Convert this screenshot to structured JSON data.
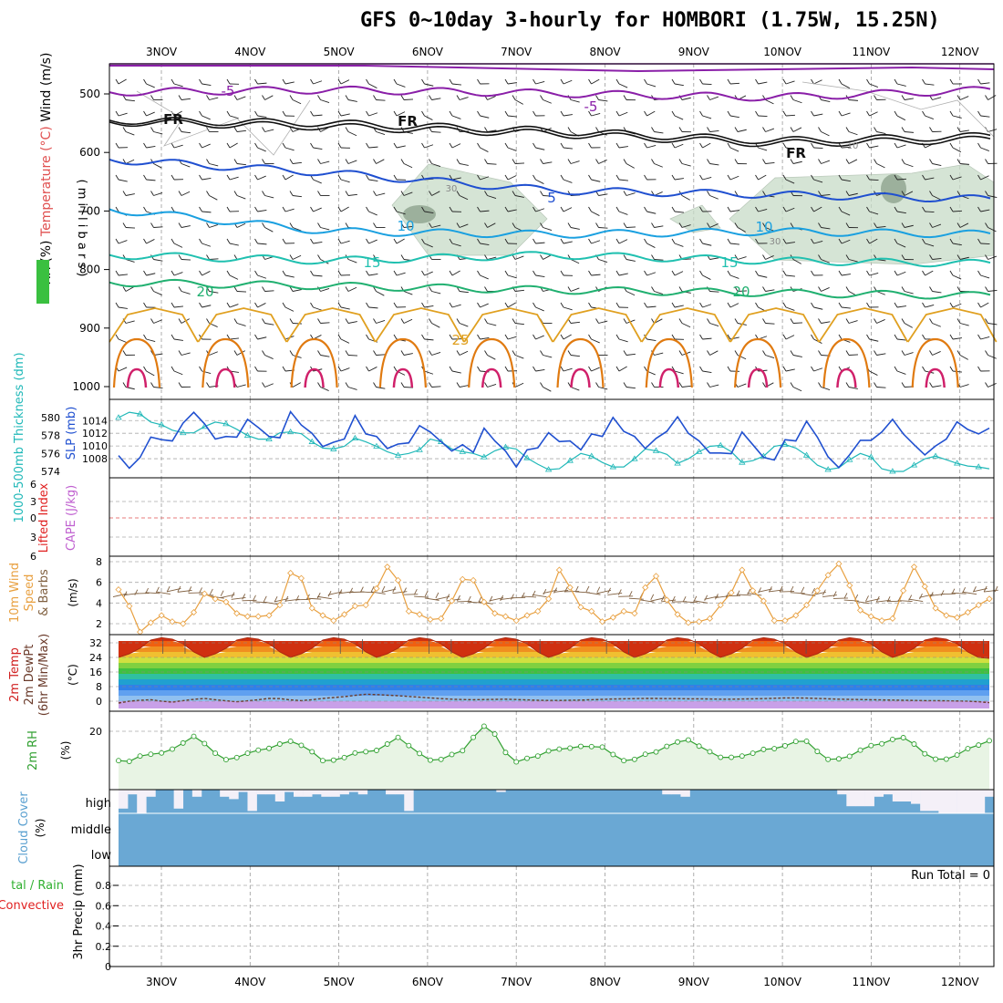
{
  "title": "GFS 0~10day 3-hourly for HOMBORI (1.75W, 15.25N)",
  "dates": [
    "3NOV",
    "4NOV",
    "5NOV",
    "6NOV",
    "7NOV",
    "8NOV",
    "9NOV",
    "10NOV",
    "11NOV",
    "12NOV"
  ],
  "colors": {
    "purple": "#8a1fa8",
    "blue": "#1f4fd0",
    "lightblue": "#1aa0e0",
    "teal": "#20c0b0",
    "green": "#20b070",
    "orange": "#e0a020",
    "darkorange": "#e07a10",
    "magenta": "#d0206a",
    "slp": "#2050d0",
    "thick": "#20b8b8",
    "wind": "#e8a040",
    "barb": "#806040",
    "rh": "#30a030",
    "cloud": "#6aa8d4",
    "precip_green": "#30b030",
    "convective": "#e02020"
  },
  "chart_data": [
    {
      "type": "contour",
      "panel": "upper-air",
      "ylabel_parts": [
        "RH (%)",
        "Temperature (°C)",
        "Wind (m/s)"
      ],
      "y_unit_label": "( m i l l i b a r s )",
      "y_ticks": [
        500,
        600,
        700,
        800,
        900,
        1000
      ],
      "contour_labels": [
        "5",
        "-5",
        "FR",
        "FR",
        "FR",
        "5",
        "10",
        "10",
        "15",
        "15",
        "20",
        "20",
        "25",
        "30",
        "30",
        "10"
      ],
      "isotherms": [
        {
          "label": "-5",
          "color": "purple",
          "pressure": [
            497,
            493,
            499,
            506,
            493
          ]
        },
        {
          "label": "FR",
          "color": "black",
          "pressure": [
            545,
            550,
            563,
            580,
            572
          ]
        },
        {
          "label": "5",
          "color": "blue",
          "pressure": [
            612,
            635,
            665,
            672,
            680
          ]
        },
        {
          "label": "10",
          "color": "lightblue",
          "pressure": [
            697,
            735,
            740,
            735,
            740
          ]
        },
        {
          "label": "15",
          "color": "teal",
          "pressure": [
            775,
            785,
            775,
            785,
            790
          ]
        },
        {
          "label": "20",
          "color": "green",
          "pressure": [
            822,
            828,
            835,
            840,
            845
          ]
        }
      ]
    },
    {
      "type": "line",
      "panel": "slp-thickness",
      "ylabel_left": "1000-500mb Thickness (dm)",
      "ylabel_right": "SLP (mb)",
      "y_ticks_left": [
        574,
        576,
        578,
        580
      ],
      "y_ticks_right": [
        1008,
        1010,
        1012,
        1014
      ],
      "slp": [
        1008.5,
        1006.5,
        1008.2,
        1011.4,
        1011,
        1010.8,
        1013.6,
        1015.3,
        1013.5,
        1011.1,
        1011.5,
        1011.4,
        1014.2,
        1012.9,
        1011.5,
        1011.3,
        1015.4,
        1013.3,
        1012,
        1009.9,
        1010.6,
        1011.1,
        1014.8,
        1011.9,
        1011.5,
        1009.6,
        1010.3,
        1010.5,
        1013.2,
        1012.2,
        1010.7,
        1009.2,
        1010.2,
        1009,
        1012.8,
        1010.8,
        1009.2,
        1006.7,
        1009.4,
        1009.7,
        1012.1,
        1010.7,
        1010.8,
        1009.4,
        1011.9,
        1011.5,
        1014.5,
        1012.3,
        1011.5,
        1009.6,
        1011.2,
        1012.3,
        1014.6,
        1012,
        1010.8,
        1008.9,
        1008.9,
        1008.8,
        1012.2,
        1010.2,
        1008.2,
        1007.8,
        1011,
        1010.8,
        1013.9,
        1011.4,
        1008.3,
        1006.6,
        1008.6,
        1010.9,
        1010.9,
        1012.2,
        1014.2,
        1011.9,
        1010.2,
        1008.6,
        1010,
        1011.1,
        1013.8,
        1012.6,
        1011.9,
        1012.8
      ],
      "thickness": [
        580,
        580.6,
        580.4,
        579.5,
        579.2,
        578.6,
        578.3,
        578.3,
        579,
        579.5,
        579.3,
        578.7,
        578,
        577.6,
        577.6,
        578.3,
        578.4,
        578.2,
        577.3,
        576.6,
        576.5,
        576.8,
        577.7,
        577.3,
        576.8,
        576.2,
        575.8,
        576,
        576.4,
        577.6,
        577.3,
        576.5,
        576.2,
        576,
        575.6,
        576.3,
        576.7,
        576.5,
        575.5,
        574.8,
        574.2,
        574.3,
        575.2,
        576,
        575.7,
        575,
        574.5,
        574.5,
        575.4,
        576.5,
        576.3,
        575.9,
        574.9,
        575.4,
        576.2,
        576.8,
        576.9,
        576.2,
        575,
        575.2,
        575.7,
        576.8,
        577,
        576.6,
        575.8,
        574.7,
        574.2,
        574.4,
        575.3,
        576,
        575.6,
        574.3,
        574,
        574,
        574.7,
        575.4,
        575.7,
        575.3,
        574.9,
        574.6,
        574.5,
        574.3
      ]
    },
    {
      "type": "line",
      "panel": "cape-li",
      "ylabel_left": "Lifted Index",
      "ylabel_right": "CAPE (J/kg)",
      "y_ticks": [
        "6",
        "3",
        "0",
        "3",
        "6"
      ],
      "lifted_index": [],
      "cape": []
    },
    {
      "type": "line",
      "panel": "10m-wind",
      "ylabel": "10m Wind Speed & Barbs (m/s)",
      "ylabel_parts": [
        "10m Wind",
        "Speed",
        "& Barbs"
      ],
      "y_unit": "(m/s)",
      "y_ticks": [
        2,
        4,
        6,
        8
      ],
      "speed": [
        5.3,
        3.7,
        1.2,
        2.1,
        2.8,
        2.2,
        2,
        3.1,
        4.9,
        4.4,
        4.1,
        3,
        2.7,
        2.7,
        2.8,
        3.8,
        6.9,
        6.4,
        3.5,
        2.8,
        2.3,
        2.9,
        3.7,
        3.8,
        5.4,
        7.5,
        6.2,
        3.2,
        2.9,
        2.4,
        2.5,
        4.2,
        6.3,
        6.2,
        4.1,
        3,
        2.7,
        2.3,
        2.8,
        3.2,
        4.4,
        7.2,
        5.5,
        3.6,
        3.2,
        2.2,
        2.6,
        3.2,
        3,
        5.5,
        6.6,
        4.3,
        2.9,
        2.1,
        2.2,
        2.5,
        3.8,
        5,
        7.2,
        5.2,
        4.2,
        2.3,
        2.3,
        2.8,
        3.8,
        5.2,
        6.7,
        7.8,
        5.7,
        3.3,
        2.7,
        2.3,
        2.5,
        5.2,
        7.5,
        5.6,
        3.5,
        2.8,
        2.6,
        3.1,
        3.8,
        4.4
      ]
    },
    {
      "type": "area",
      "panel": "2m-temp",
      "ylabel_parts": [
        "2m Temp",
        "2m DewPt",
        "(6hr Min/Max)",
        "(°C)"
      ],
      "y_ticks": [
        0,
        8,
        16,
        24,
        32
      ],
      "temp": [
        24,
        26,
        29,
        33.5,
        34.8,
        34,
        31.5,
        27,
        24,
        26,
        29,
        33.5,
        34.8,
        34,
        31.5,
        27,
        24,
        26,
        29,
        33.5,
        34.8,
        34,
        31.5,
        27,
        24,
        26,
        29,
        33.5,
        34.8,
        34,
        31.5,
        27,
        24,
        26,
        29,
        33.5,
        34.8,
        34,
        31.5,
        27,
        24,
        26,
        29,
        33.5,
        34.8,
        34,
        31.5,
        27,
        24,
        26,
        29,
        33.5,
        34.8,
        34,
        31.5,
        27,
        24,
        26,
        29,
        33.5,
        34.8,
        34,
        31.5,
        27,
        24,
        26,
        29,
        33.5,
        34.8,
        34,
        31.5,
        27,
        24,
        26,
        29,
        33.5,
        34.8,
        34,
        31.5,
        27,
        24,
        23.5
      ],
      "dewpt": [
        -1,
        0,
        0.5,
        0.8,
        0,
        -0.5,
        0.3,
        1,
        1.5,
        0.8,
        0.2,
        -0.3,
        0.2,
        0.8,
        1.5,
        1.4,
        0.7,
        0.3,
        0.8,
        1.5,
        2,
        2.5,
        3.2,
        3.8,
        3.6,
        3.3,
        3,
        2.6,
        2.2,
        1.8,
        1.4,
        1.1,
        0.9,
        0.8,
        0.9,
        1,
        1.1,
        0.9,
        0.7,
        0.5,
        0.4,
        0.4,
        0.5,
        0.6,
        0.8,
        1,
        1.2,
        1.3,
        1.4,
        1.5,
        1.5,
        1.4,
        1.4,
        1.3,
        1.3,
        1.2,
        1.1,
        1.1,
        1.2,
        1.3,
        1.4,
        1.6,
        1.8,
        1.8,
        1.7,
        1.5,
        1.3,
        1.1,
        1,
        0.9,
        0.8,
        0.7,
        0.6,
        0.5,
        0.4,
        0.3,
        0.3,
        0.2,
        0.1,
        0,
        -0.3,
        -0.8
      ]
    },
    {
      "type": "area",
      "panel": "2m-rh",
      "ylabel_parts": [
        "2m RH",
        "(%)"
      ],
      "y_ticks": [
        20
      ],
      "rh": [
        8.5,
        8.2,
        10.3,
        11,
        11.5,
        13,
        15.4,
        18,
        15.2,
        11.4,
        8.9,
        9.7,
        11.4,
        12.6,
        13.3,
        15,
        16.1,
        14.5,
        12,
        8.5,
        8.7,
        9.7,
        11.5,
        12,
        12.5,
        15,
        17.6,
        14.4,
        11.3,
        8.7,
        9,
        10.9,
        12.4,
        17.6,
        22,
        18.9,
        11.7,
        8,
        9.4,
        10.3,
        12.3,
        13,
        13.4,
        14.1,
        14,
        13.8,
        10.9,
        8.5,
        9,
        11,
        11.9,
        14.1,
        15.8,
        16.6,
        14.2,
        12,
        9.8,
        9.8,
        10.3,
        11.4,
        12.9,
        13.2,
        14.3,
        16,
        16.1,
        12.1,
        9,
        9.2,
        10.2,
        12.6,
        14.4,
        15.1,
        16.8,
        17.5,
        15,
        11.2,
        9.1,
        9.1,
        10.7,
        13.2,
        14.6,
        16.3
      ]
    },
    {
      "type": "bar",
      "panel": "cloud-cover",
      "ylabel": "Cloud Cover (%)",
      "ylabel_parts": [
        "Cloud Cover",
        "(%)"
      ],
      "levels": [
        "high",
        "middle",
        "low"
      ],
      "high_gap_fraction": [
        0.8,
        0.2,
        1,
        0.3,
        0,
        0,
        0.8,
        0,
        0.3,
        0,
        0,
        0.3,
        0.4,
        0.1,
        0.9,
        0.2,
        0.2,
        0.5,
        0.1,
        0.3,
        0.3,
        0.2,
        0.3,
        0.3,
        0.2,
        0.1,
        0.2,
        0,
        0,
        0.2,
        0.2,
        0.9,
        0,
        0,
        0,
        0,
        0,
        0,
        0,
        0,
        0,
        0.1,
        0,
        0,
        0,
        0,
        0,
        0,
        0,
        0,
        0,
        0,
        0,
        0,
        0,
        0,
        0,
        0,
        0,
        0.2,
        0.2,
        0.3,
        0,
        0,
        0,
        0,
        0,
        0,
        0,
        0,
        0,
        0,
        0,
        0,
        0,
        0,
        0,
        0,
        0.2,
        0.7,
        0.7,
        0.7,
        0.3,
        0.2,
        0.5,
        0.5,
        0.6,
        0.9,
        0.9,
        1,
        1,
        1,
        1,
        1,
        0.3
      ],
      "middle": [],
      "low": []
    },
    {
      "type": "bar",
      "panel": "precip",
      "ylabel_parts": [
        "tal / Rain",
        "Convective",
        "3hr Precip (mm)"
      ],
      "y_ticks": [
        0,
        0.2,
        0.4,
        0.6,
        0.8
      ],
      "run_total_label": "Run Total = 0",
      "total": [],
      "convective": []
    }
  ]
}
